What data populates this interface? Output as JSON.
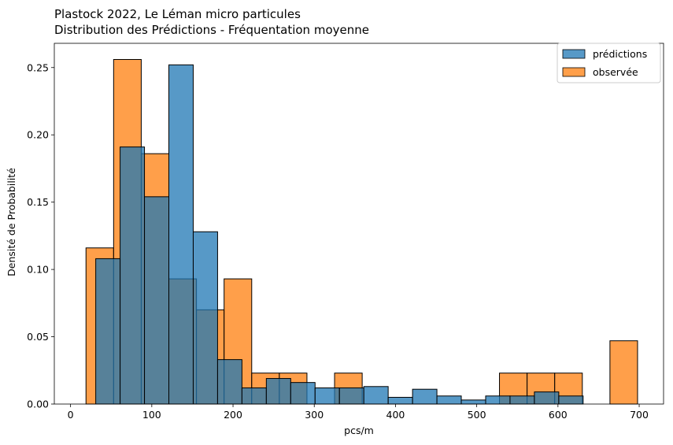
{
  "chart_data": {
    "type": "bar",
    "title": "Plastock 2022, Le Léman micro particules",
    "subtitle": "Distribution des Prédictions - Fréquentation moyenne",
    "xlabel": "pcs/m",
    "ylabel": "Densité de Probabilité",
    "xlim": [
      -20,
      730
    ],
    "ylim": [
      0,
      0.268
    ],
    "xticks": [
      0,
      100,
      200,
      300,
      400,
      500,
      600,
      700
    ],
    "yticks": [
      0.0,
      0.05,
      0.1,
      0.15,
      0.2,
      0.25
    ],
    "grid": false,
    "legend": "top-right",
    "series": [
      {
        "name": "observée",
        "color": "#ff7f0e",
        "bins": [
          {
            "x0": 19,
            "x1": 53,
            "value": 0.116
          },
          {
            "x0": 53,
            "x1": 87,
            "value": 0.256
          },
          {
            "x0": 87,
            "x1": 121,
            "value": 0.186
          },
          {
            "x0": 121,
            "x1": 155,
            "value": 0.093
          },
          {
            "x0": 155,
            "x1": 189,
            "value": 0.07
          },
          {
            "x0": 189,
            "x1": 223,
            "value": 0.093
          },
          {
            "x0": 223,
            "x1": 257,
            "value": 0.023
          },
          {
            "x0": 257,
            "x1": 291,
            "value": 0.023
          },
          {
            "x0": 325,
            "x1": 359,
            "value": 0.023
          },
          {
            "x0": 528,
            "x1": 562,
            "value": 0.023
          },
          {
            "x0": 562,
            "x1": 596,
            "value": 0.023
          },
          {
            "x0": 596,
            "x1": 630,
            "value": 0.023
          },
          {
            "x0": 664,
            "x1": 698,
            "value": 0.047
          }
        ]
      },
      {
        "name": "prédictions",
        "color": "#1f77b4",
        "bins": [
          {
            "x0": 31,
            "x1": 61,
            "value": 0.108
          },
          {
            "x0": 61,
            "x1": 91,
            "value": 0.191
          },
          {
            "x0": 91,
            "x1": 121,
            "value": 0.154
          },
          {
            "x0": 121,
            "x1": 151,
            "value": 0.252
          },
          {
            "x0": 151,
            "x1": 181,
            "value": 0.128
          },
          {
            "x0": 181,
            "x1": 211,
            "value": 0.033
          },
          {
            "x0": 211,
            "x1": 241,
            "value": 0.012
          },
          {
            "x0": 241,
            "x1": 271,
            "value": 0.019
          },
          {
            "x0": 271,
            "x1": 301,
            "value": 0.016
          },
          {
            "x0": 301,
            "x1": 331,
            "value": 0.012
          },
          {
            "x0": 331,
            "x1": 361,
            "value": 0.012
          },
          {
            "x0": 361,
            "x1": 391,
            "value": 0.013
          },
          {
            "x0": 391,
            "x1": 421,
            "value": 0.005
          },
          {
            "x0": 421,
            "x1": 451,
            "value": 0.011
          },
          {
            "x0": 451,
            "x1": 481,
            "value": 0.006
          },
          {
            "x0": 481,
            "x1": 511,
            "value": 0.003
          },
          {
            "x0": 511,
            "x1": 541,
            "value": 0.006
          },
          {
            "x0": 541,
            "x1": 571,
            "value": 0.006
          },
          {
            "x0": 571,
            "x1": 601,
            "value": 0.009
          },
          {
            "x0": 601,
            "x1": 631,
            "value": 0.006
          }
        ]
      }
    ]
  }
}
